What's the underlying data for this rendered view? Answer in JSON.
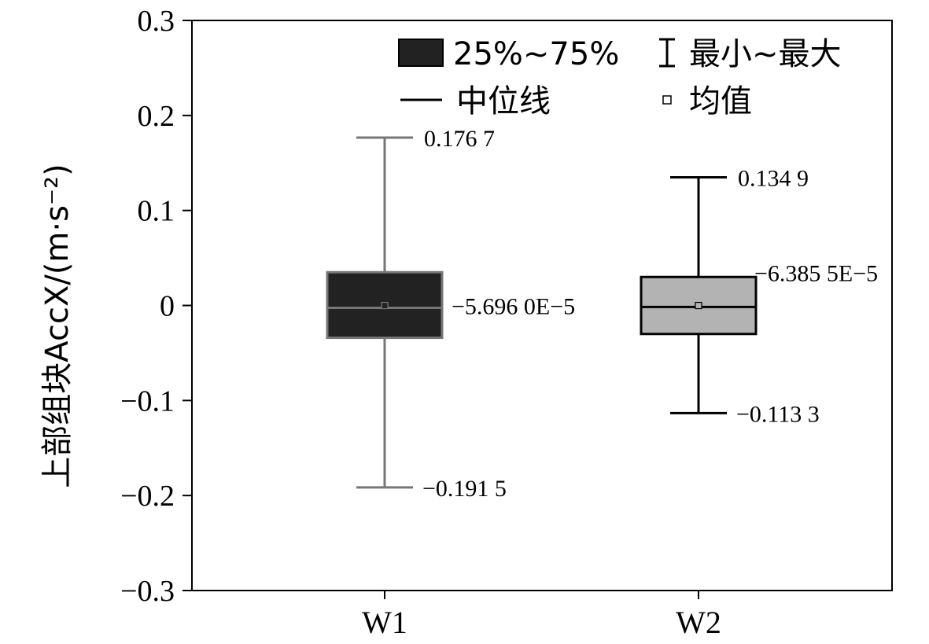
{
  "chart_data": {
    "type": "box",
    "ylabel": "上部组块AccX/(m·s⁻²)",
    "ylim": [
      -0.3,
      0.3
    ],
    "yticks": [
      0.3,
      0.2,
      0.1,
      0,
      -0.1,
      -0.2,
      -0.3
    ],
    "ytick_labels": [
      "0.3",
      "0.2",
      "0.1",
      "0",
      "−0.1",
      "−0.2",
      "−0.3"
    ],
    "categories": [
      "W1",
      "W2"
    ],
    "series": [
      {
        "category": "W1",
        "min": -0.1915,
        "q1": -0.034,
        "median": -0.0025,
        "q3": 0.035,
        "max": 0.1767,
        "mean": -5.696e-05,
        "fill": "#222222",
        "stroke": "#777777",
        "annotations": {
          "max": "0.176 7",
          "mean": "−5.696 0E−5",
          "min": "−0.191 5"
        }
      },
      {
        "category": "W2",
        "min": -0.1133,
        "q1": -0.03,
        "median": -0.0015,
        "q3": 0.03,
        "max": 0.1349,
        "mean": -6.3855e-05,
        "fill": "#b3b3b3",
        "stroke": "#000000",
        "annotations": {
          "max": "0.134 9",
          "mean": "−6.385 5E−5",
          "min": "−0.113 3"
        }
      }
    ],
    "legend": {
      "placement": "top",
      "items": [
        {
          "label": "25%~75%",
          "symbol": "box"
        },
        {
          "label": "最小~最大",
          "symbol": "whisker"
        },
        {
          "label": "中位线",
          "symbol": "line"
        },
        {
          "label": "均值",
          "symbol": "small-square"
        }
      ]
    },
    "grid": false
  }
}
